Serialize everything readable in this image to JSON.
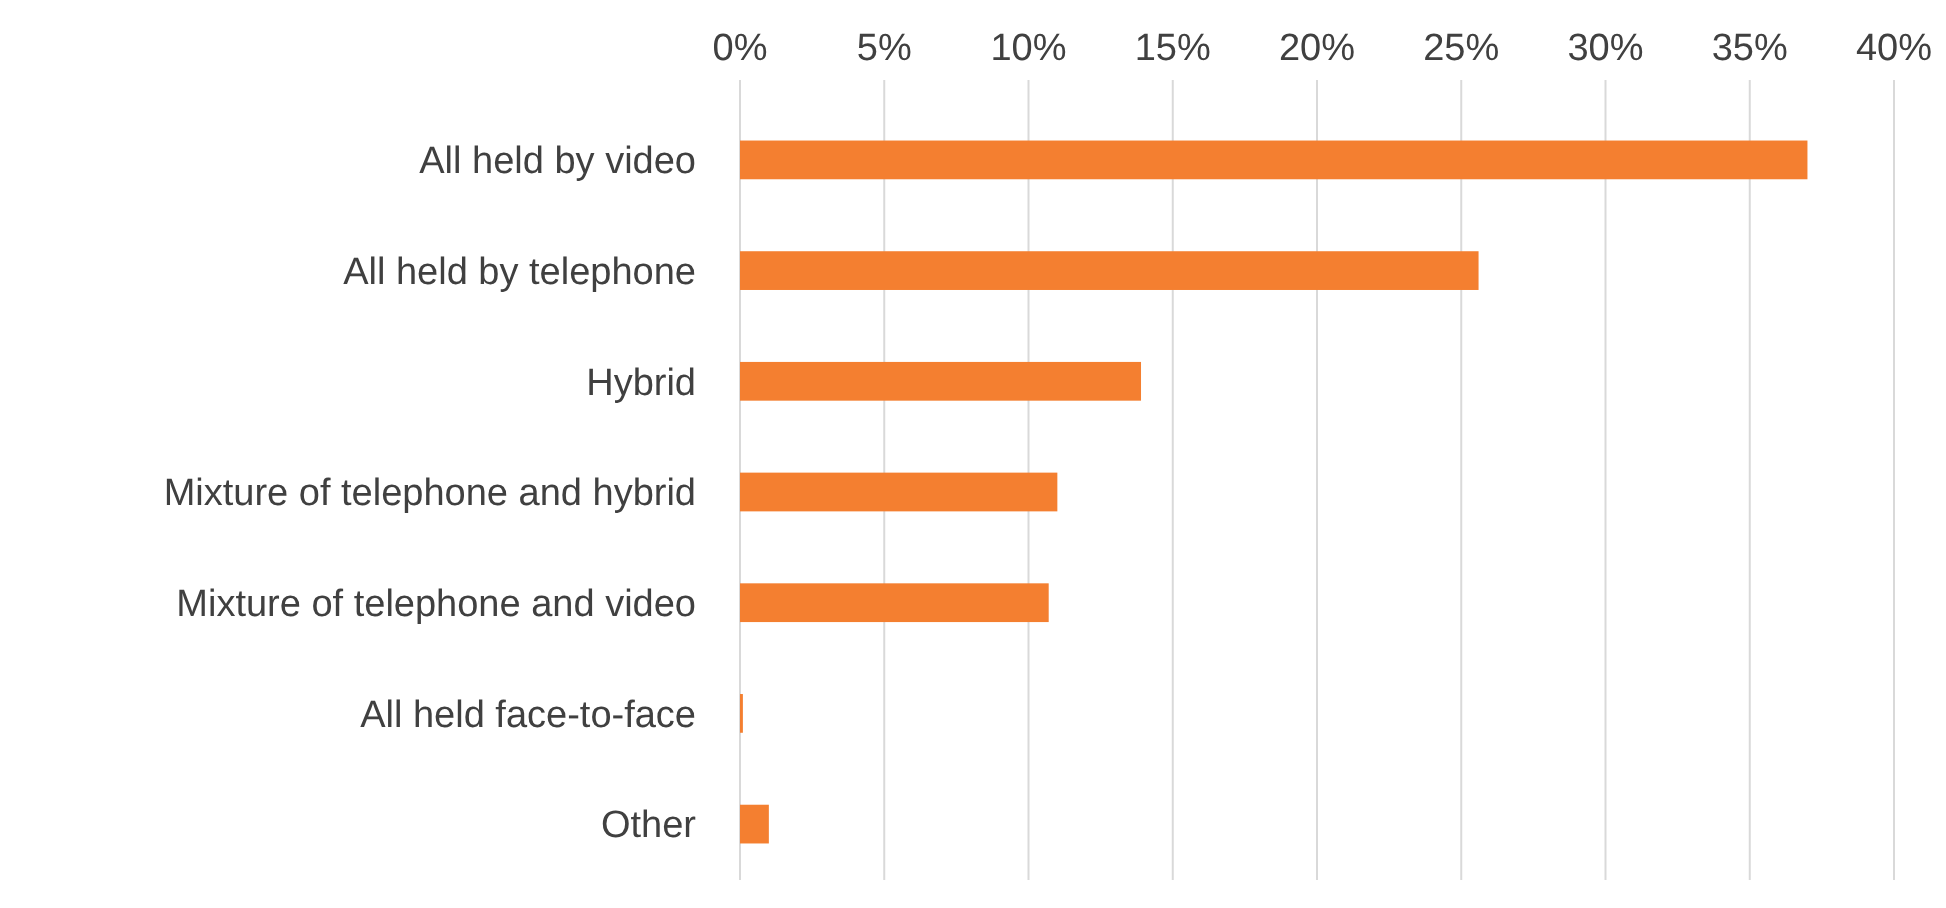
{
  "chart_data": {
    "type": "bar",
    "orientation": "horizontal",
    "categories": [
      "All held by video",
      "All held by telephone",
      "Hybrid",
      "Mixture of telephone and hybrid",
      "Mixture of telephone and video",
      "All held face-to-face",
      "Other"
    ],
    "values": [
      37,
      25.6,
      13.9,
      11,
      10.7,
      0.1,
      1
    ],
    "color": "#f47f30",
    "xlim": [
      0,
      40
    ],
    "xticks": [
      {
        "value": 0,
        "label": "0%"
      },
      {
        "value": 5,
        "label": "5%"
      },
      {
        "value": 10,
        "label": "10%"
      },
      {
        "value": 15,
        "label": "15%"
      },
      {
        "value": 20,
        "label": "20%"
      },
      {
        "value": 25,
        "label": "25%"
      },
      {
        "value": 30,
        "label": "30%"
      },
      {
        "value": 35,
        "label": "35%"
      },
      {
        "value": 40,
        "label": "40%"
      }
    ],
    "grid": "x"
  }
}
